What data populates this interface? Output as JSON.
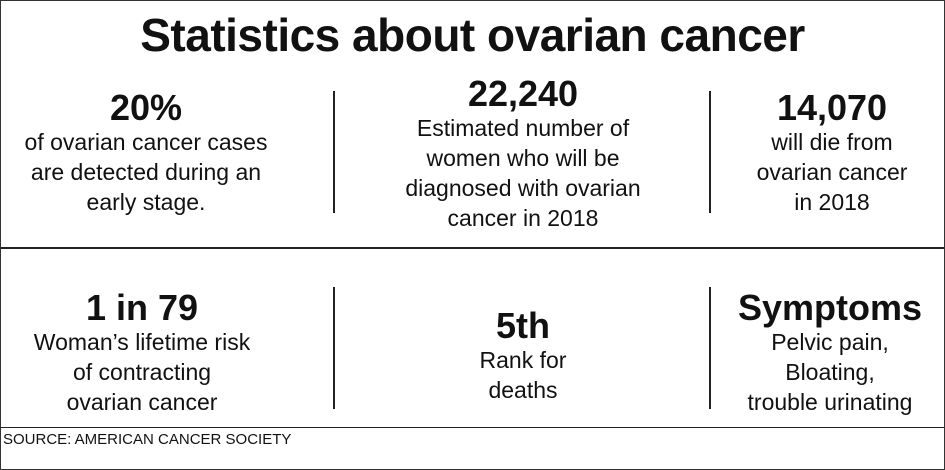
{
  "title": "Statistics about ovarian cancer",
  "stats": [
    {
      "value": "20%",
      "lines": [
        "of ovarian cancer cases",
        "are detected during an",
        "early stage."
      ]
    },
    {
      "value": "22,240",
      "lines": [
        "Estimated number of",
        "women who will be",
        "diagnosed with ovarian",
        "cancer in 2018"
      ]
    },
    {
      "value": "14,070",
      "lines": [
        "will die from",
        "ovarian cancer",
        "in 2018"
      ]
    },
    {
      "value": "1 in 79",
      "lines": [
        "Woman’s lifetime risk",
        "of contracting",
        "ovarian cancer"
      ]
    },
    {
      "value": "5th",
      "lines": [
        "Rank for",
        "deaths"
      ]
    },
    {
      "value": "Symptoms",
      "lines": [
        "Pelvic pain,",
        "Bloating,",
        "trouble urinating"
      ]
    }
  ],
  "source": "SOURCE: AMERICAN CANCER SOCIETY"
}
